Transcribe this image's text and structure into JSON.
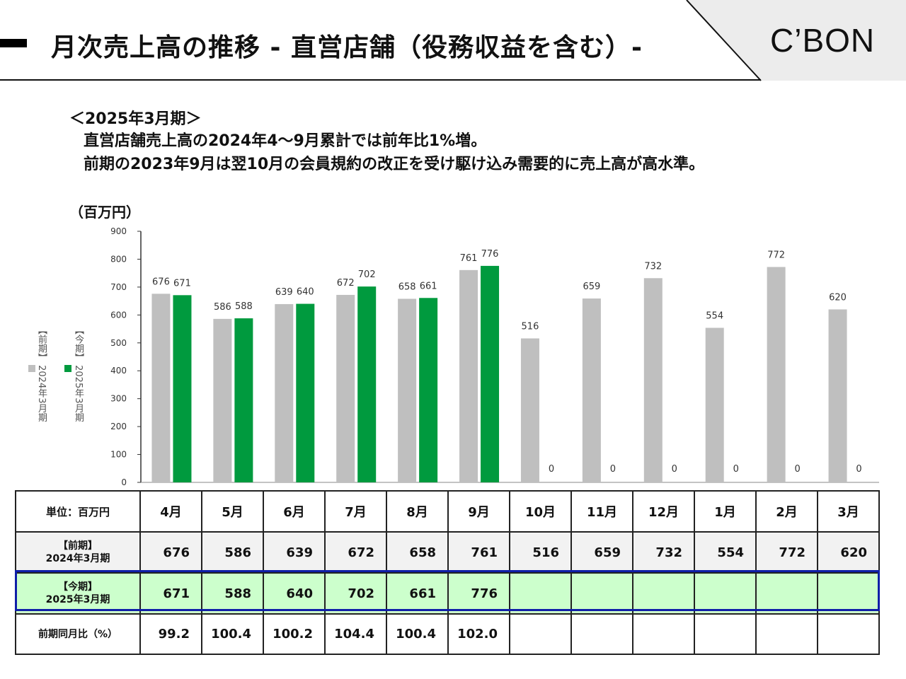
{
  "header": {
    "title": "月次売上高の推移 - 直営店舗（役務収益を含む）-",
    "logo": "C’BON"
  },
  "summary": {
    "period": "＜2025年3月期＞",
    "line1": "直営店舗売上高の2024年4〜9月累計では前年比1%増。",
    "line2": "前期の2023年9月は翌10月の会員規約の改正を受け駆け込み需要的に売上高が高水準。"
  },
  "chart_data": {
    "type": "bar",
    "unit_label": "（百万円）",
    "categories": [
      "4月",
      "5月",
      "6月",
      "7月",
      "8月",
      "9月",
      "10月",
      "11月",
      "12月",
      "1月",
      "2月",
      "3月"
    ],
    "series": [
      {
        "name": "【前期】2024年3月期",
        "color": "#bfbfbf",
        "values": [
          676,
          586,
          639,
          672,
          658,
          761,
          516,
          659,
          732,
          554,
          772,
          620
        ]
      },
      {
        "name": "【今期】2025年3月期",
        "color": "#009a3e",
        "values": [
          671,
          588,
          640,
          702,
          661,
          776,
          0,
          0,
          0,
          0,
          0,
          0
        ]
      }
    ],
    "ylim": [
      0,
      900
    ],
    "yticks": [
      0,
      100,
      200,
      300,
      400,
      500,
      600,
      700,
      800,
      900
    ],
    "legend_position": "left, vertical",
    "grid": false
  },
  "legend": {
    "prev": "【前期】 2024年3月期",
    "curr": "【今期】 2025年3月期"
  },
  "table": {
    "corner": "単位：百万円",
    "months": [
      "4月",
      "5月",
      "6月",
      "7月",
      "8月",
      "9月",
      "10月",
      "11月",
      "12月",
      "1月",
      "2月",
      "3月"
    ],
    "rows": [
      {
        "label1": "【前期】",
        "label2": "2024年3月期",
        "values": [
          "676",
          "586",
          "639",
          "672",
          "658",
          "761",
          "516",
          "659",
          "732",
          "554",
          "772",
          "620"
        ]
      },
      {
        "label1": "【今期】",
        "label2": "2025年3月期",
        "values": [
          "671",
          "588",
          "640",
          "702",
          "661",
          "776",
          "",
          "",
          "",
          "",
          "",
          ""
        ]
      },
      {
        "label1": "前期同月比（%）",
        "label2": "",
        "values": [
          "99.2",
          "100.4",
          "100.2",
          "104.4",
          "100.4",
          "102.0",
          "",
          "",
          "",
          "",
          "",
          ""
        ]
      }
    ]
  }
}
